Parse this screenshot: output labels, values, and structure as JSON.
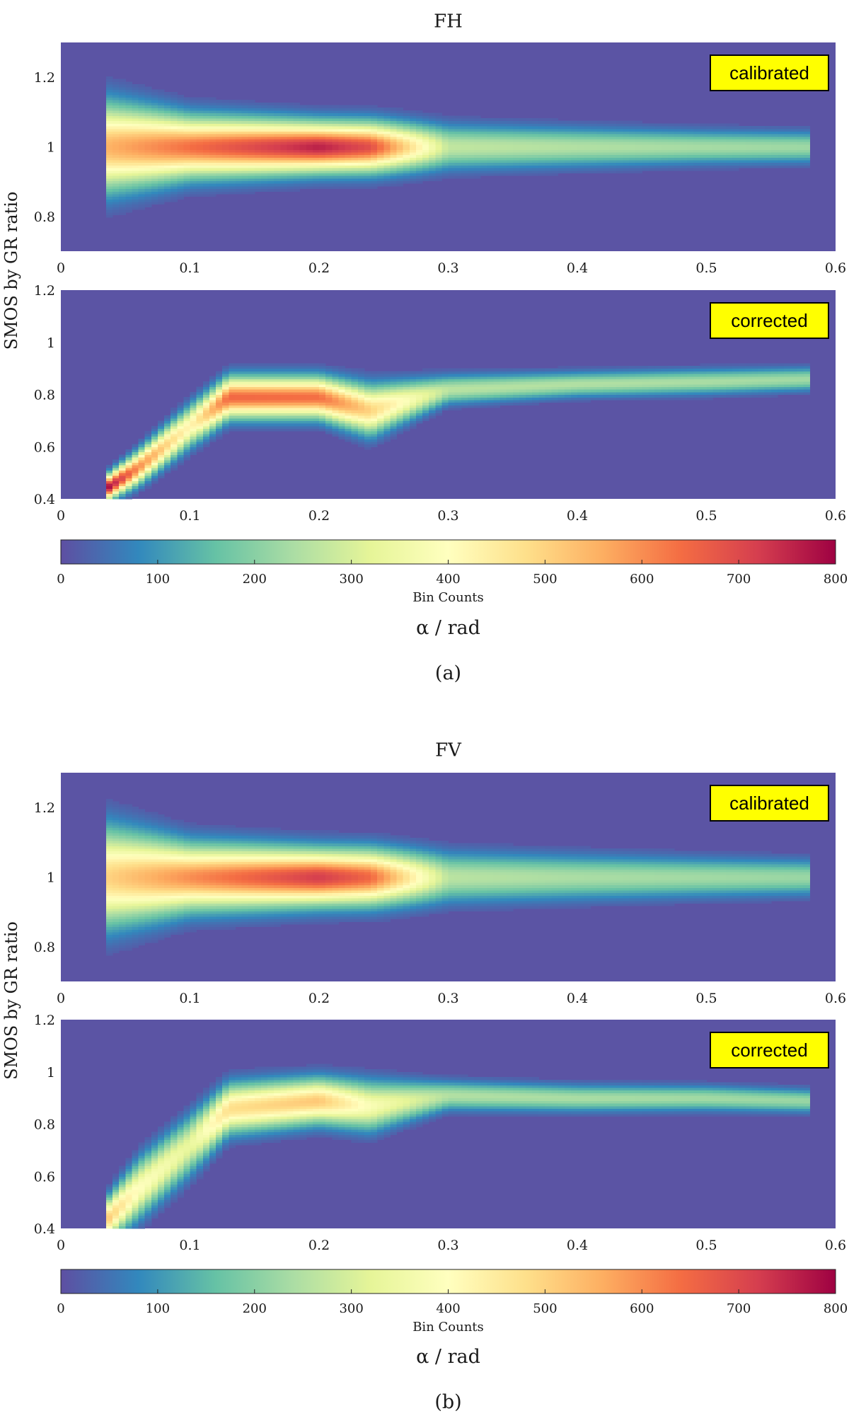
{
  "figures": [
    {
      "title": "FH",
      "caption": "(a)",
      "colorbar_label": "Bin Counts",
      "xlabel": "α / rad",
      "ylabel": "SMOS by GR ratio",
      "panels": [
        {
          "badge": "calibrated",
          "ytick_labels": [
            "0.8",
            "1",
            "1.2"
          ]
        },
        {
          "badge": "corrected",
          "ytick_labels": [
            "0.4",
            "0.6",
            "0.8",
            "1",
            "1.2"
          ]
        }
      ]
    },
    {
      "title": "FV",
      "caption": "(b)",
      "colorbar_label": "Bin Counts",
      "xlabel": "α / rad",
      "ylabel": "SMOS by GR ratio",
      "panels": [
        {
          "badge": "calibrated",
          "ytick_labels": [
            "0.8",
            "1",
            "1.2"
          ]
        },
        {
          "badge": "corrected",
          "ytick_labels": [
            "0.4",
            "0.6",
            "0.8",
            "1",
            "1.2"
          ]
        }
      ]
    }
  ],
  "xtick_labels": [
    "0",
    "0.1",
    "0.2",
    "0.3",
    "0.4",
    "0.5",
    "0.6"
  ],
  "cbar_tick_labels": [
    "0",
    "100",
    "200",
    "300",
    "400",
    "500",
    "600",
    "700",
    "800"
  ],
  "colors": {
    "background_bin": "#5b54a4",
    "badge_fill": "#ffff00",
    "colormap": [
      "#5e4fa2",
      "#3288bd",
      "#66c2a5",
      "#abdda4",
      "#e6f598",
      "#ffffbf",
      "#fee08b",
      "#fdae61",
      "#f46d43",
      "#d53e4f",
      "#9e0142"
    ]
  },
  "chart_data": [
    {
      "type": "heatmap",
      "title": "FH",
      "panel": "calibrated",
      "xlabel": "α / rad",
      "ylabel": "SMOS by GR ratio",
      "xlim": [
        0,
        0.6
      ],
      "ylim": [
        0.7,
        1.3
      ],
      "xticks": [
        0,
        0.1,
        0.2,
        0.3,
        0.4,
        0.5,
        0.6
      ],
      "yticks": [
        0.8,
        1,
        1.2
      ],
      "clim": [
        0,
        800
      ],
      "colorbar_label": "Bin Counts",
      "alpha_max": 0.58,
      "ridge": {
        "alpha": [
          0.035,
          0.1,
          0.2,
          0.24,
          0.3,
          0.4,
          0.5,
          0.58
        ],
        "ratio_center": [
          1.0,
          1.0,
          1.0,
          1.0,
          1.0,
          1.0,
          1.0,
          1.0
        ],
        "peak_count": [
          550,
          640,
          760,
          690,
          270,
          250,
          235,
          225
        ],
        "half_width": [
          0.08,
          0.055,
          0.045,
          0.045,
          0.04,
          0.035,
          0.03,
          0.028
        ]
      }
    },
    {
      "type": "heatmap",
      "title": "FH",
      "panel": "corrected",
      "xlabel": "α / rad",
      "ylabel": "SMOS by GR ratio",
      "xlim": [
        0,
        0.6
      ],
      "ylim": [
        0.4,
        1.2
      ],
      "xticks": [
        0,
        0.1,
        0.2,
        0.3,
        0.4,
        0.5,
        0.6
      ],
      "yticks": [
        0.4,
        0.6,
        0.8,
        1,
        1.2
      ],
      "clim": [
        0,
        800
      ],
      "colorbar_label": "Bin Counts",
      "alpha_max": 0.58,
      "ridge": {
        "alpha": [
          0.035,
          0.06,
          0.1,
          0.13,
          0.2,
          0.24,
          0.3,
          0.4,
          0.5,
          0.58
        ],
        "ratio_center": [
          0.44,
          0.52,
          0.68,
          0.79,
          0.79,
          0.74,
          0.82,
          0.84,
          0.85,
          0.86
        ],
        "peak_count": [
          800,
          600,
          420,
          650,
          640,
          500,
          260,
          250,
          240,
          230
        ],
        "half_width": [
          0.03,
          0.04,
          0.05,
          0.05,
          0.05,
          0.06,
          0.035,
          0.03,
          0.03,
          0.028
        ]
      }
    },
    {
      "type": "heatmap",
      "title": "FV",
      "panel": "calibrated",
      "xlabel": "α / rad",
      "ylabel": "SMOS by GR ratio",
      "xlim": [
        0,
        0.6
      ],
      "ylim": [
        0.7,
        1.3
      ],
      "xticks": [
        0,
        0.1,
        0.2,
        0.3,
        0.4,
        0.5,
        0.6
      ],
      "yticks": [
        0.8,
        1,
        1.2
      ],
      "clim": [
        0,
        800
      ],
      "colorbar_label": "Bin Counts",
      "alpha_max": 0.58,
      "ridge": {
        "alpha": [
          0.035,
          0.1,
          0.2,
          0.24,
          0.3,
          0.4,
          0.5,
          0.58
        ],
        "ratio_center": [
          1.0,
          1.0,
          1.0,
          1.0,
          1.0,
          1.0,
          1.0,
          1.0
        ],
        "peak_count": [
          500,
          600,
          720,
          650,
          260,
          240,
          230,
          220
        ],
        "half_width": [
          0.09,
          0.06,
          0.05,
          0.05,
          0.045,
          0.04,
          0.035,
          0.032
        ]
      }
    },
    {
      "type": "heatmap",
      "title": "FV",
      "panel": "corrected",
      "xlabel": "α / rad",
      "ylabel": "SMOS by GR ratio",
      "xlim": [
        0,
        0.6
      ],
      "ylim": [
        0.4,
        1.2
      ],
      "xticks": [
        0,
        0.1,
        0.2,
        0.3,
        0.4,
        0.5,
        0.6
      ],
      "yticks": [
        0.4,
        0.6,
        0.8,
        1,
        1.2
      ],
      "clim": [
        0,
        800
      ],
      "colorbar_label": "Bin Counts",
      "alpha_max": 0.58,
      "ridge": {
        "alpha": [
          0.035,
          0.06,
          0.1,
          0.13,
          0.2,
          0.24,
          0.3,
          0.4,
          0.5,
          0.58
        ],
        "ratio_center": [
          0.43,
          0.55,
          0.72,
          0.86,
          0.89,
          0.87,
          0.91,
          0.9,
          0.9,
          0.89
        ],
        "peak_count": [
          520,
          400,
          330,
          480,
          520,
          380,
          250,
          240,
          230,
          220
        ],
        "half_width": [
          0.05,
          0.07,
          0.07,
          0.06,
          0.055,
          0.06,
          0.035,
          0.032,
          0.03,
          0.028
        ]
      }
    }
  ]
}
